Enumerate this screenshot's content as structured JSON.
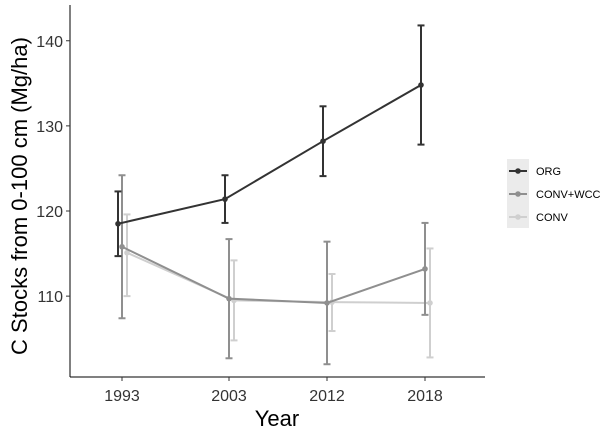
{
  "chart_data": {
    "type": "line",
    "xlabel": "Year",
    "ylabel": "C Stocks from 0-100 cm (Mg/ha)",
    "categories": [
      "1993",
      "2003",
      "2012",
      "2018"
    ],
    "yticks": [
      110,
      120,
      130,
      140
    ],
    "ylim": [
      100.5,
      144.2
    ],
    "grid": false,
    "legend_position": "right",
    "series": [
      {
        "name": "ORG",
        "color": "#333333",
        "values": [
          118.5,
          121.4,
          128.2,
          134.8
        ],
        "lower": [
          114.7,
          118.6,
          124.1,
          127.8
        ],
        "upper": [
          122.3,
          124.2,
          132.3,
          141.8
        ]
      },
      {
        "name": "CONV+WCC",
        "color": "#8f8f8f",
        "values": [
          115.8,
          109.7,
          109.2,
          113.2
        ],
        "lower": [
          107.4,
          102.7,
          102.0,
          107.8
        ],
        "upper": [
          124.2,
          116.7,
          116.4,
          118.6
        ]
      },
      {
        "name": "CONV",
        "color": "#cfcfcf",
        "values": [
          115.1,
          109.5,
          109.3,
          109.2
        ],
        "lower": [
          110.0,
          104.8,
          105.9,
          102.8
        ],
        "upper": [
          119.6,
          114.2,
          112.6,
          115.6
        ]
      }
    ]
  }
}
